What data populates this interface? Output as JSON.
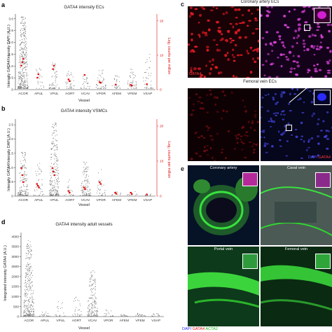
{
  "panels": {
    "a": {
      "label": "a",
      "title": "GATA4 intensity ECs",
      "ylabel": "Intensity GATA4/Intensity DAPI (A.U.)",
      "ylabel_right": "Log₂ counts per million",
      "xlabel": "Vessel",
      "y_ticks": [
        "0",
        "0.5",
        "1.0",
        "1.5",
        "2.0",
        "2.5",
        "3.0"
      ],
      "y_right_ticks": [
        "0",
        "10",
        "20"
      ]
    },
    "b": {
      "label": "b",
      "title": "GATA4 intensity VSMCs",
      "ylabel": "Intensity GATA4/Intensity DAPI (A.U.)",
      "ylabel_right": "Log₂ counts per million",
      "xlabel": "Vessel",
      "y_ticks": [
        "0",
        "0.5",
        "1.0",
        "1.5",
        "2.0",
        "2.5"
      ],
      "y_right_ticks": [
        "0",
        "10",
        "20"
      ]
    },
    "d": {
      "label": "d",
      "title": "GATA4 intensity adult vessels",
      "ylabel": "Integrated intensity GATA4 (A.U.)",
      "xlabel": "Vessel",
      "y_ticks": [
        "0",
        "500",
        "1000",
        "1500",
        "2000",
        "2500",
        "3000",
        "3500",
        "4000"
      ]
    },
    "c": {
      "label": "c",
      "top_title": "Coronary artery ECs",
      "bottom_title": "Femoral vein ECs",
      "gata4": "GATA4",
      "dapi": "DAPI",
      "merge_gata4": "GATA4"
    },
    "e": {
      "label": "e",
      "titles": [
        "Coronary artery",
        "Caval vein",
        "Portal vein",
        "Femoral vein"
      ],
      "legend_dapi": "DAPI",
      "legend_gata4": "GATA4",
      "legend_acta2": "ACTA2"
    }
  },
  "colors": {
    "rna_marker": "#e01414",
    "points": "#777777",
    "gata4": "#e0141e",
    "dapi": "#3a3af0",
    "acta2": "#22d022"
  },
  "chart_data": [
    {
      "type": "scatter",
      "title": "GATA4 intensity ECs",
      "xlabel": "Vessel",
      "ylabel": "Intensity GATA4/Intensity DAPI (A.U.)",
      "ylabel_right": "Log₂ counts per million",
      "categories": [
        "ACOR",
        "APUL",
        "VPUL",
        "AORT",
        "VCAV",
        "VPOR",
        "AFEM",
        "VFEM",
        "VSAP"
      ],
      "ylim": [
        0,
        3.2
      ],
      "ylim_right": [
        0,
        22
      ],
      "spread": [
        [
          0.05,
          3.1
        ],
        [
          0.05,
          1.0
        ],
        [
          0.05,
          1.2
        ],
        [
          0.05,
          0.8
        ],
        [
          0.05,
          0.6
        ],
        [
          0.05,
          0.9
        ],
        [
          0.05,
          0.6
        ],
        [
          0.05,
          0.9
        ],
        [
          0.05,
          1.5
        ]
      ],
      "density": [
        360,
        22,
        60,
        35,
        28,
        45,
        26,
        45,
        40
      ],
      "rna_log2_cpm": [
        [
          7,
          8,
          9
        ],
        [
          3.5,
          4.5
        ],
        [
          6,
          7
        ],
        [
          3,
          2.5
        ],
        [
          4.3
        ],
        [
          2.2,
          2
        ],
        [
          1.5
        ],
        [
          1.4,
          1.2
        ],
        [
          1.6
        ]
      ]
    },
    {
      "type": "scatter",
      "title": "GATA4 intensity VSMCs",
      "xlabel": "Vessel",
      "ylabel": "Intensity GATA4/Intensity DAPI (A.U.)",
      "ylabel_right": "Log₂ counts per million",
      "categories": [
        "ACOR",
        "APUL",
        "VPUL",
        "AORT",
        "VCAV",
        "VPOR",
        "AFEM",
        "VFEM",
        "VSAP"
      ],
      "ylim": [
        0,
        2.7
      ],
      "ylim_right": [
        0,
        22
      ],
      "spread": [
        [
          0.02,
          1.6
        ],
        [
          0.02,
          1.2
        ],
        [
          0.02,
          2.6
        ],
        [
          0.02,
          0.6
        ],
        [
          0.02,
          1.2
        ],
        [
          0.02,
          0.95
        ],
        [
          0.02,
          0.25
        ],
        [
          0.02,
          0.3
        ],
        [
          0.02,
          0.2
        ]
      ],
      "density": [
        150,
        40,
        230,
        20,
        110,
        30,
        12,
        10,
        8
      ],
      "rna_log2_cpm": [
        [
          8,
          6,
          4
        ],
        [
          3.5,
          3,
          2.5
        ],
        [
          8,
          7,
          6
        ],
        [
          1.5,
          1
        ],
        [
          2.5,
          2
        ],
        [
          4,
          3.5
        ],
        [
          1,
          0.7
        ],
        [
          1,
          0.6
        ],
        [
          0.5
        ]
      ]
    },
    {
      "type": "scatter",
      "title": "GATA4 intensity adult vessels",
      "xlabel": "Vessel",
      "ylabel": "Integrated intensity GATA4 (A.U.)",
      "categories": [
        "ACOR",
        "APUL",
        "VPUL",
        "AORT",
        "VCAV",
        "VPOR",
        "AFEM",
        "VFEM",
        "VSAP"
      ],
      "ylim": [
        0,
        4200
      ],
      "spread": [
        [
          20,
          3800
        ],
        [
          20,
          250
        ],
        [
          20,
          800
        ],
        [
          20,
          1000
        ],
        [
          20,
          2300
        ],
        [
          20,
          350
        ],
        [
          20,
          150
        ],
        [
          20,
          200
        ],
        [
          20,
          150
        ]
      ],
      "density": [
        320,
        20,
        20,
        30,
        160,
        18,
        15,
        20,
        12
      ]
    }
  ]
}
